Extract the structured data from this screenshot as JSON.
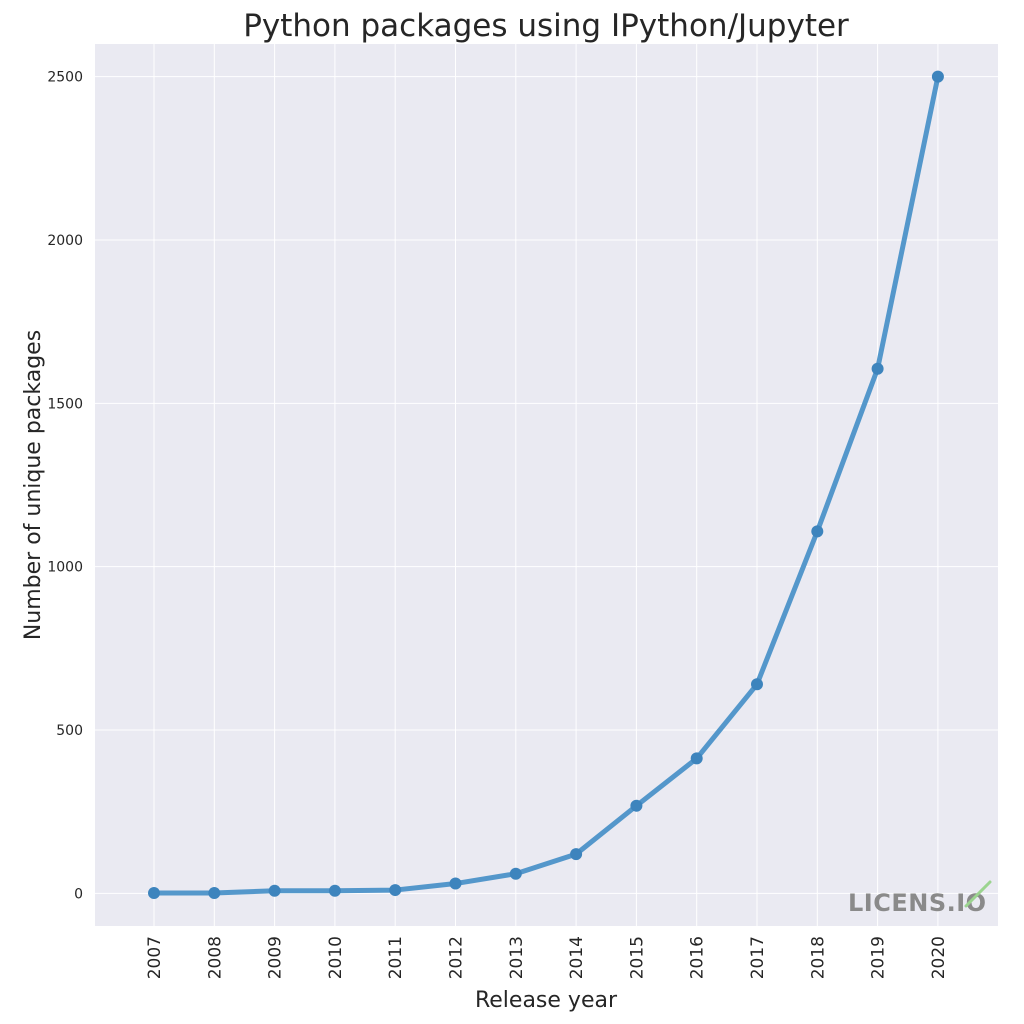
{
  "chart_data": {
    "type": "line",
    "title": "Python packages using IPython/Jupyter",
    "xlabel": "Release year",
    "ylabel": "Number of unique packages",
    "x": [
      "2007",
      "2008",
      "2009",
      "2010",
      "2011",
      "2012",
      "2013",
      "2014",
      "2015",
      "2016",
      "2017",
      "2018",
      "2019",
      "2020"
    ],
    "series": [
      {
        "values": [
          1,
          1,
          8,
          8,
          10,
          30,
          60,
          120,
          268,
          413,
          640,
          1108,
          1606,
          2500
        ]
      }
    ],
    "yticks": [
      "0",
      "500",
      "1000",
      "1500",
      "2000",
      "2500"
    ],
    "ylim": [
      -100,
      2600
    ],
    "grid": true,
    "legend": "none",
    "colors": {
      "background": "#eaeaf2",
      "grid": "#ffffff",
      "line": "#4c92c8",
      "marker": "#3d84bd",
      "text": "#262626"
    }
  },
  "watermark": {
    "text": "LICENS.IO",
    "check_color": "#9bd48f"
  }
}
